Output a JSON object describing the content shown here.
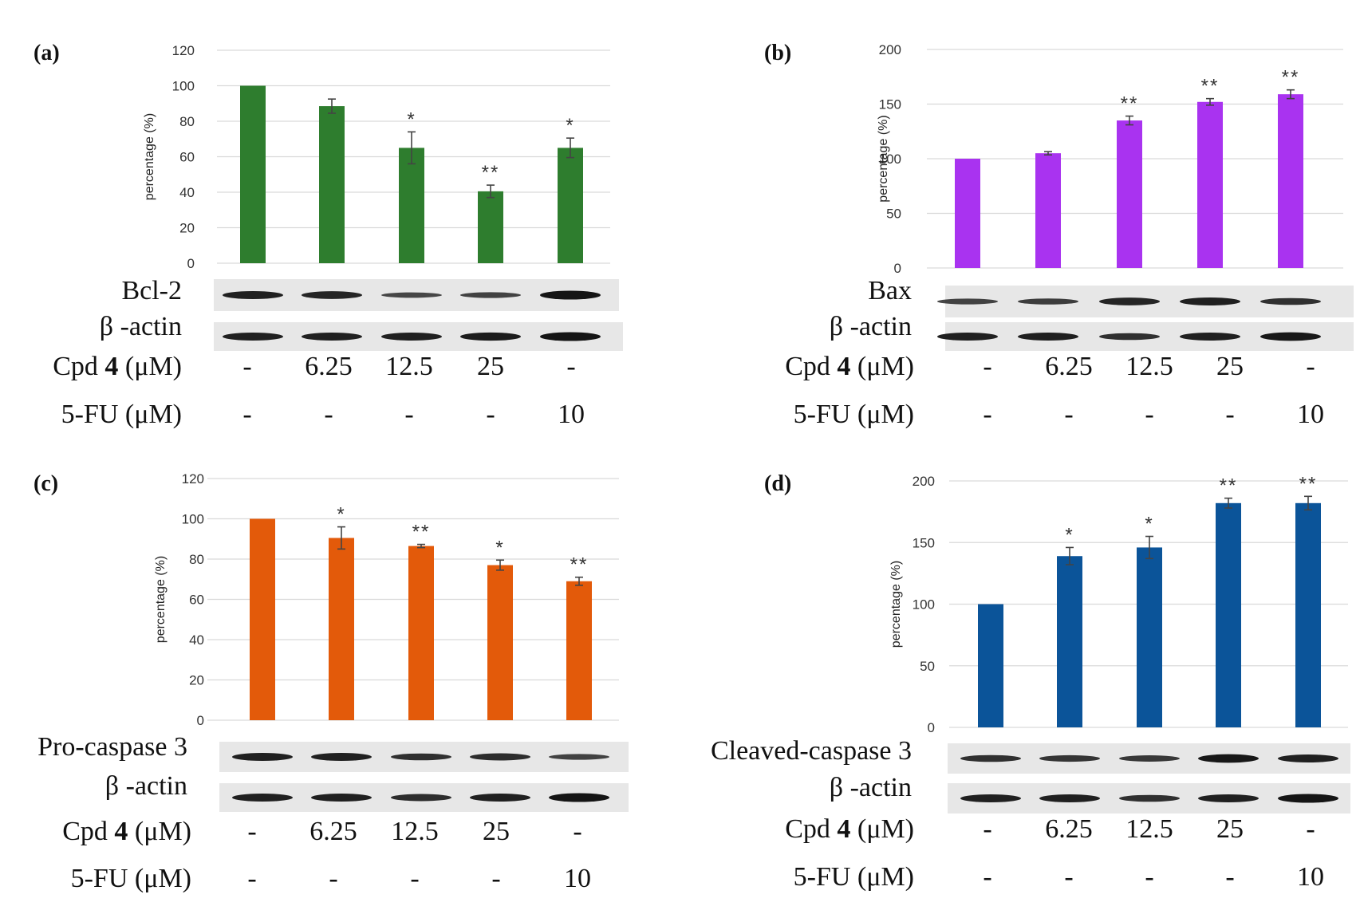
{
  "chart_data": [
    {
      "panel": "(a)",
      "type": "bar",
      "color": "#2e7d2e",
      "ylabel": "percentage (%)",
      "ylim": [
        0,
        120
      ],
      "yticks": [
        0,
        20,
        40,
        60,
        80,
        100,
        120
      ],
      "values": [
        100,
        88.5,
        65,
        40.5,
        65
      ],
      "errors": [
        0,
        4,
        9,
        3.5,
        5.5
      ],
      "significance": [
        "",
        "",
        "*",
        "**",
        "*"
      ],
      "blots": [
        "Bcl-2",
        "β -actin"
      ],
      "conditions": [
        {
          "label_pre": "Cpd ",
          "label_bold": "4",
          "label_post": " (μM)",
          "values": [
            "-",
            "6.25",
            "12.5",
            "25",
            "-"
          ]
        },
        {
          "label_pre": "5-FU (μM)",
          "label_bold": "",
          "label_post": "",
          "values": [
            "-",
            "-",
            "-",
            "-",
            "10"
          ]
        }
      ]
    },
    {
      "panel": "(b)",
      "type": "bar",
      "color": "#a933f0",
      "ylabel": "percentage (%)",
      "ylim": [
        0,
        200
      ],
      "yticks": [
        0,
        50,
        100,
        150,
        200
      ],
      "values": [
        100,
        105,
        135,
        152,
        159
      ],
      "errors": [
        0,
        1.5,
        4,
        3,
        4
      ],
      "significance": [
        "",
        "",
        "**",
        "**",
        "**"
      ],
      "blots": [
        "Bax",
        "β -actin"
      ],
      "conditions": [
        {
          "label_pre": "Cpd ",
          "label_bold": "4",
          "label_post": " (μM)",
          "values": [
            "-",
            "6.25",
            "12.5",
            "25",
            "-"
          ]
        },
        {
          "label_pre": "5-FU (μM)",
          "label_bold": "",
          "label_post": "",
          "values": [
            "-",
            "-",
            "-",
            "-",
            "10"
          ]
        }
      ]
    },
    {
      "panel": "(c)",
      "type": "bar",
      "color": "#e35a0a",
      "ylabel": "percentage (%)",
      "ylim": [
        0,
        120
      ],
      "yticks": [
        0,
        20,
        40,
        60,
        80,
        100,
        120
      ],
      "values": [
        100,
        90.5,
        86.5,
        77,
        69
      ],
      "errors": [
        0,
        5.5,
        0.8,
        2.5,
        2
      ],
      "significance": [
        "",
        "*",
        "**",
        "*",
        "**"
      ],
      "blots": [
        "Pro-caspase 3",
        "β -actin"
      ],
      "conditions": [
        {
          "label_pre": "Cpd ",
          "label_bold": "4",
          "label_post": " (μM)",
          "values": [
            "-",
            "6.25",
            "12.5",
            "25",
            "-"
          ]
        },
        {
          "label_pre": "5-FU (μM)",
          "label_bold": "",
          "label_post": "",
          "values": [
            "-",
            "-",
            "-",
            "-",
            "10"
          ]
        }
      ]
    },
    {
      "panel": "(d)",
      "type": "bar",
      "color": "#0b5499",
      "ylabel": "percentage (%)",
      "ylim": [
        0,
        200
      ],
      "yticks": [
        0,
        50,
        100,
        150,
        200
      ],
      "values": [
        100,
        139,
        146,
        182,
        182
      ],
      "errors": [
        0,
        7,
        9,
        4,
        5.5
      ],
      "significance": [
        "",
        "*",
        "*",
        "**",
        "**"
      ],
      "blots": [
        "Cleaved-caspase 3",
        "β -actin"
      ],
      "conditions": [
        {
          "label_pre": "Cpd ",
          "label_bold": "4",
          "label_post": " (μM)",
          "values": [
            "-",
            "6.25",
            "12.5",
            "25",
            "-"
          ]
        },
        {
          "label_pre": "5-FU (μM)",
          "label_bold": "",
          "label_post": "",
          "values": [
            "-",
            "-",
            "-",
            "-",
            "10"
          ]
        }
      ]
    }
  ]
}
